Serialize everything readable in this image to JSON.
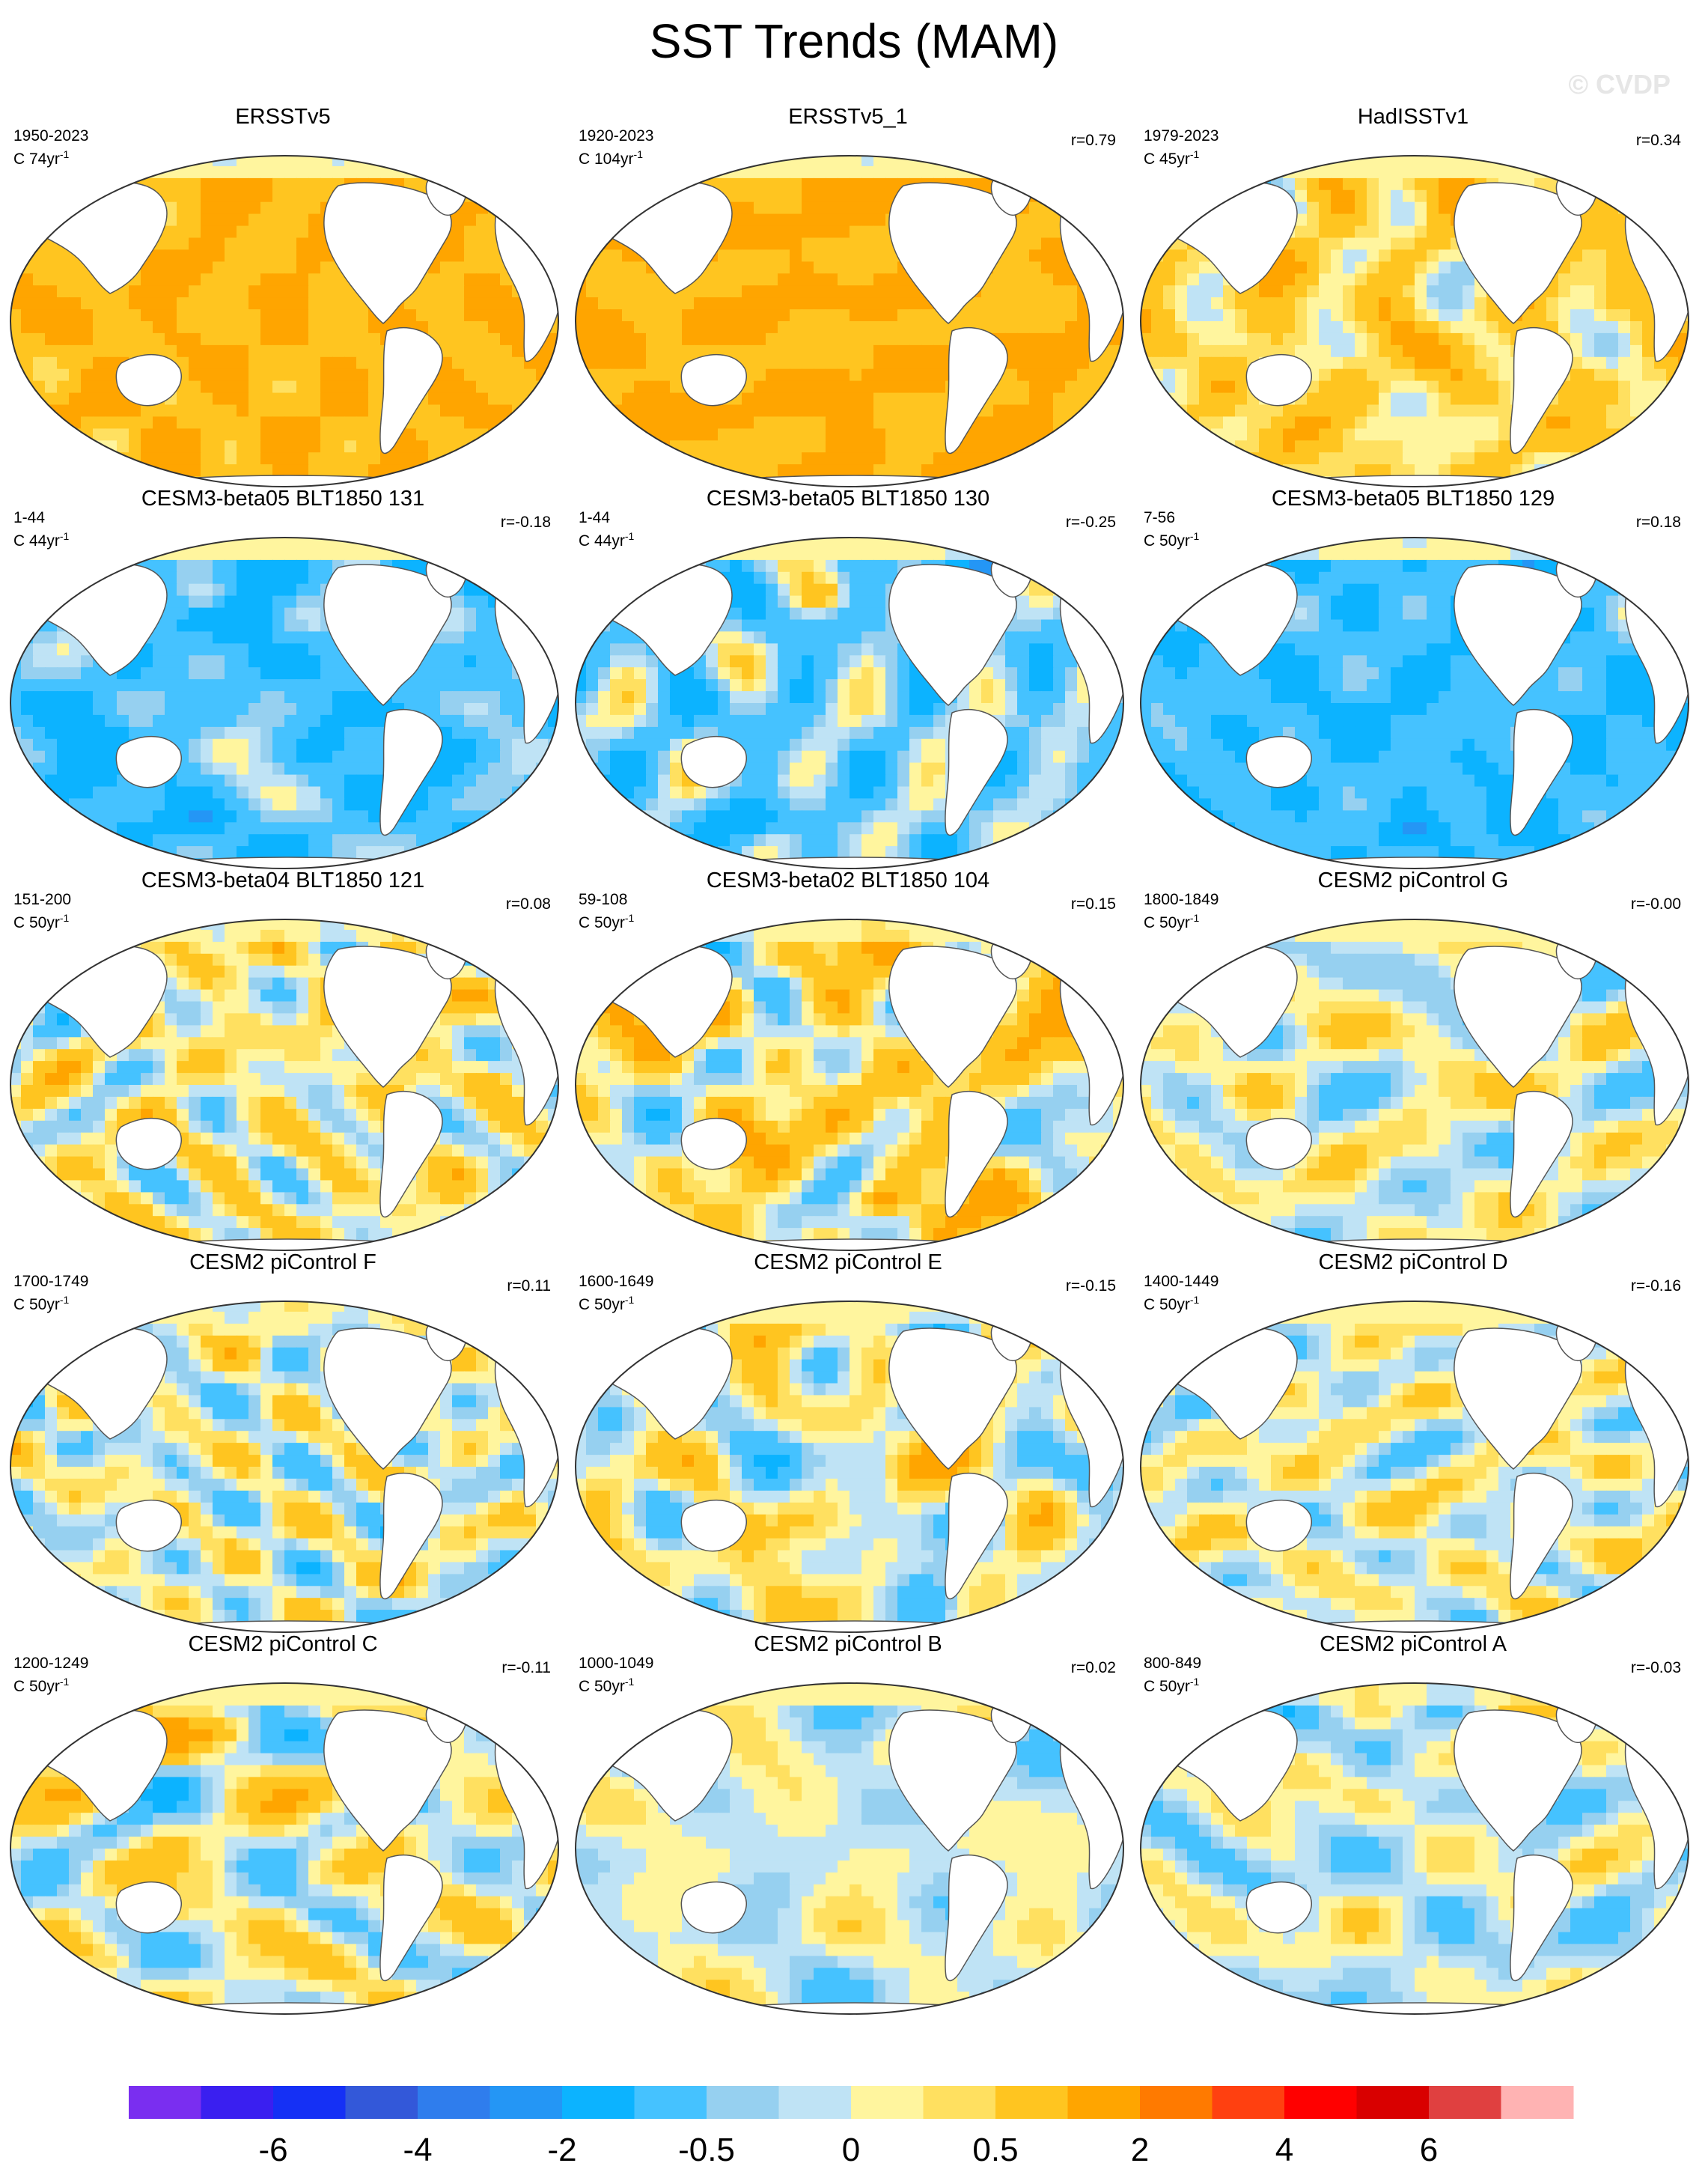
{
  "title": "SST Trends (MAM)",
  "watermark": "© CVDP",
  "colors": {
    "land": "#ffffff",
    "coast": "#555555",
    "palette": [
      "#7a2ef0",
      "#3a1ff0",
      "#1530f5",
      "#3358d9",
      "#2f7ded",
      "#2496f5",
      "#0cb3ff",
      "#45c2ff",
      "#96d0f0",
      "#bfe3f5",
      "#fff59e",
      "#ffe060",
      "#ffc520",
      "#ffa500",
      "#ff7a00",
      "#ff4010",
      "#ff0000",
      "#d90000",
      "#e04040",
      "#ffb3b3"
    ]
  },
  "chart_data": {
    "type": "heatmap",
    "variable": "SST trend",
    "season": "MAM",
    "colorbar": {
      "levels": [
        -8,
        -7,
        -6,
        -5,
        -4,
        -3,
        -2,
        -1,
        -0.5,
        -0.25,
        0,
        0.25,
        0.5,
        1,
        2,
        3,
        4,
        5,
        6,
        7,
        8
      ],
      "tick_labels": [
        "-6",
        "-4",
        "-2",
        "-0.5",
        "0",
        "0.5",
        "2",
        "4",
        "6"
      ]
    },
    "panels": [
      {
        "title": "ERSSTv5",
        "period": "1950-2023",
        "units_prefix": "C 74yr",
        "units_sup": "-1",
        "corr": "",
        "bias": 0.95,
        "amp": 0.35,
        "seed": 3,
        "hot": []
      },
      {
        "title": "ERSSTv5_1",
        "period": "1920-2023",
        "units_prefix": "C 104yr",
        "units_sup": "-1",
        "corr": "r=0.79",
        "bias": 1.0,
        "amp": 0.3,
        "seed": 7,
        "hot": []
      },
      {
        "title": "HadISSTv1",
        "period": "1979-2023",
        "units_prefix": "C 45yr",
        "units_sup": "-1",
        "corr": "r=0.34",
        "bias": 0.45,
        "amp": 0.45,
        "seed": 11,
        "hot": []
      },
      {
        "title": "CESM3-beta05 BLT1850 131",
        "period": "1-44",
        "units_prefix": "C 44yr",
        "units_sup": "-1",
        "corr": "r=-0.18",
        "bias": -0.75,
        "amp": 0.5,
        "seed": 13,
        "hot": [
          [
            0.72,
            0.12,
            -1.9
          ],
          [
            0.36,
            0.18,
            1.0
          ],
          [
            0.35,
            0.85,
            -1.2
          ]
        ]
      },
      {
        "title": "CESM3-beta05 BLT1850 130",
        "period": "1-44",
        "units_prefix": "C 44yr",
        "units_sup": "-1",
        "corr": "r=-0.25",
        "bias": -0.45,
        "amp": 0.7,
        "seed": 17,
        "hot": [
          [
            0.74,
            0.12,
            -1.9
          ],
          [
            0.45,
            0.18,
            1.0
          ],
          [
            0.35,
            0.85,
            -1.0
          ]
        ]
      },
      {
        "title": "CESM3-beta05 BLT1850 129",
        "period": "7-56",
        "units_prefix": "C 50yr",
        "units_sup": "-1",
        "corr": "r=0.18",
        "bias": -0.9,
        "amp": 0.35,
        "seed": 19,
        "hot": [
          [
            0.72,
            0.12,
            -2.0
          ],
          [
            0.74,
            0.16,
            2.2
          ],
          [
            0.5,
            0.88,
            -1.3
          ]
        ]
      },
      {
        "title": "CESM3-beta04 BLT1850 121",
        "period": "151-200",
        "units_prefix": "C 50yr",
        "units_sup": "-1",
        "corr": "r=0.08",
        "bias": 0.15,
        "amp": 0.5,
        "seed": 23,
        "hot": [
          [
            0.74,
            0.14,
            -1.1
          ]
        ]
      },
      {
        "title": "CESM3-beta02 BLT1850 104",
        "period": "59-108",
        "units_prefix": "C 50yr",
        "units_sup": "-1",
        "corr": "r=0.15",
        "bias": 0.3,
        "amp": 0.55,
        "seed": 29,
        "hot": [
          [
            0.36,
            0.2,
            -0.9
          ],
          [
            0.55,
            0.85,
            1.1
          ]
        ]
      },
      {
        "title": "CESM2 piControl G",
        "period": "1800-1849",
        "units_prefix": "C 50yr",
        "units_sup": "-1",
        "corr": "r=-0.00",
        "bias": 0.0,
        "amp": 0.5,
        "seed": 31,
        "hot": []
      },
      {
        "title": "CESM2 piControl F",
        "period": "1700-1749",
        "units_prefix": "C 50yr",
        "units_sup": "-1",
        "corr": "r=0.11",
        "bias": 0.0,
        "amp": 0.5,
        "seed": 37,
        "hot": []
      },
      {
        "title": "CESM2 piControl E",
        "period": "1600-1649",
        "units_prefix": "C 50yr",
        "units_sup": "-1",
        "corr": "r=-0.15",
        "bias": 0.05,
        "amp": 0.55,
        "seed": 41,
        "hot": [
          [
            0.74,
            0.12,
            1.2
          ]
        ]
      },
      {
        "title": "CESM2 piControl D",
        "period": "1400-1449",
        "units_prefix": "C 50yr",
        "units_sup": "-1",
        "corr": "r=-0.16",
        "bias": 0.05,
        "amp": 0.55,
        "seed": 43,
        "hot": []
      },
      {
        "title": "CESM2 piControl C",
        "period": "1200-1249",
        "units_prefix": "C 50yr",
        "units_sup": "-1",
        "corr": "r=-0.11",
        "bias": 0.05,
        "amp": 0.55,
        "seed": 47,
        "hot": [
          [
            0.4,
            0.15,
            0.9
          ]
        ]
      },
      {
        "title": "CESM2 piControl B",
        "period": "1000-1049",
        "units_prefix": "C 50yr",
        "units_sup": "-1",
        "corr": "r=0.02",
        "bias": -0.05,
        "amp": 0.5,
        "seed": 53,
        "hot": [
          [
            0.74,
            0.12,
            0.9
          ]
        ]
      },
      {
        "title": "CESM2 piControl A",
        "period": "800-849",
        "units_prefix": "C 50yr",
        "units_sup": "-1",
        "corr": "r=-0.03",
        "bias": -0.1,
        "amp": 0.45,
        "seed": 59,
        "hot": []
      }
    ]
  }
}
